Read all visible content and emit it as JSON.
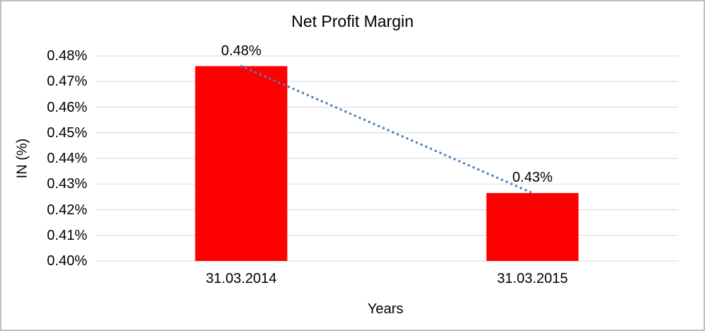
{
  "chart_data": {
    "type": "bar",
    "title": "Net Profit Margin",
    "xlabel": "Years",
    "ylabel": "IN (%)",
    "categories": [
      "31.03.2014",
      "31.03.2015"
    ],
    "values": [
      0.476,
      0.4265
    ],
    "data_labels": [
      "0.48%",
      "0.43%"
    ],
    "ylim": [
      0.4,
      0.48
    ],
    "ytick_step": 0.01,
    "ytick_labels": [
      "0.40%",
      "0.41%",
      "0.42%",
      "0.43%",
      "0.44%",
      "0.45%",
      "0.46%",
      "0.47%",
      "0.48%"
    ],
    "grid": true,
    "legend": "none",
    "bar_color": "#ff0000",
    "gridline_color": "#d9d9d9",
    "trendline": {
      "type": "linear",
      "style": "dotted",
      "color": "#4f81bd",
      "connects": [
        "31.03.2014",
        "31.03.2015"
      ]
    }
  }
}
